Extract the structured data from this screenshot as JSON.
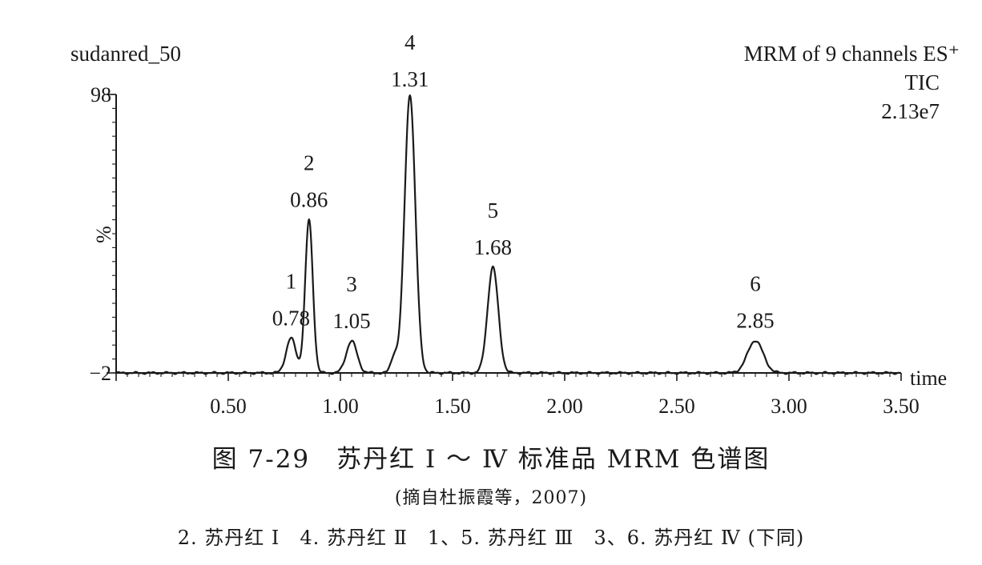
{
  "chart_data": {
    "type": "line",
    "sample_label": "sudanred_50",
    "acquisition": "MRM of 9 channels ES⁺",
    "trace": "TIC",
    "intensity": "2.13e7",
    "xlabel": "time",
    "ylabel": "%",
    "xlim": [
      0.0,
      3.5
    ],
    "ylim": [
      -2,
      98
    ],
    "x_ticks": [
      "0.50",
      "1.00",
      "1.50",
      "2.00",
      "2.50",
      "3.00",
      "3.50"
    ],
    "y_ticks": [
      "98",
      "−2"
    ],
    "baseline": -2,
    "peaks": [
      {
        "id": "1",
        "rt": 0.78,
        "rt_label": "0.78",
        "height": 10.5,
        "width": 0.022
      },
      {
        "id": "2",
        "rt": 0.86,
        "rt_label": "0.86",
        "height": 53,
        "width": 0.017
      },
      {
        "id": "3",
        "rt": 1.05,
        "rt_label": "1.05",
        "height": 9.5,
        "width": 0.024
      },
      {
        "id": "4",
        "rt": 1.31,
        "rt_label": "1.31",
        "height": 98,
        "width": 0.024
      },
      {
        "id": "5",
        "rt": 1.68,
        "rt_label": "1.68",
        "height": 36,
        "width": 0.024
      },
      {
        "id": "6",
        "rt": 2.85,
        "rt_label": "2.85",
        "height": 9.6,
        "width": 0.035
      }
    ]
  },
  "caption": {
    "title": "图 7-29　苏丹红 Ⅰ ～ Ⅳ 标准品 MRM 色谱图",
    "source": "(摘自杜振霞等，2007)",
    "legend": "2. 苏丹红 Ⅰ　4. 苏丹红 Ⅱ　1、5. 苏丹红 Ⅲ　3、6. 苏丹红 Ⅳ (下同)"
  }
}
